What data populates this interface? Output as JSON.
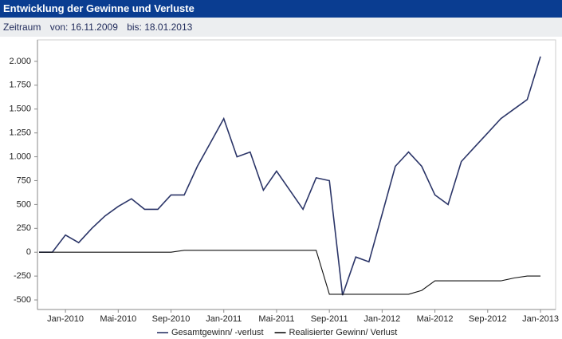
{
  "chart_data": {
    "type": "line",
    "title": "Entwicklung der Gewinne und Verluste",
    "period_label": "Zeitraum",
    "period_from": "von: 16.11.2009",
    "period_to": "bis: 18.01.2013",
    "categories": [
      null,
      null,
      "Jan-2010",
      null,
      null,
      null,
      "Mai-2010",
      null,
      null,
      null,
      "Sep-2010",
      null,
      null,
      null,
      "Jan-2011",
      null,
      null,
      null,
      "Mai-2011",
      null,
      null,
      null,
      "Sep-2011",
      null,
      null,
      null,
      "Jan-2012",
      null,
      null,
      null,
      "Mai-2012",
      null,
      null,
      null,
      "Sep-2012",
      null,
      null,
      null,
      "Jan-2013"
    ],
    "series": [
      {
        "name": "Gesamtgewinn/ -verlust",
        "color": "#2b3568",
        "values": [
          0,
          0,
          180,
          100,
          250,
          380,
          480,
          560,
          450,
          450,
          600,
          600,
          900,
          1150,
          1400,
          1000,
          1050,
          650,
          850,
          650,
          450,
          780,
          750,
          -450,
          -50,
          -100,
          400,
          900,
          1050,
          900,
          600,
          500,
          950,
          1100,
          1250,
          1400,
          1500,
          1600,
          2050
        ]
      },
      {
        "name": "Realisierter Gewinn/ Verlust",
        "color": "#111111",
        "values": [
          0,
          0,
          0,
          0,
          0,
          0,
          0,
          0,
          0,
          0,
          0,
          20,
          20,
          20,
          20,
          20,
          20,
          20,
          20,
          20,
          20,
          20,
          -440,
          -440,
          -440,
          -440,
          -440,
          -440,
          -440,
          -400,
          -300,
          -300,
          -300,
          -300,
          -300,
          -300,
          -270,
          -250,
          -250
        ]
      }
    ],
    "ylim": [
      -600,
      2225
    ],
    "yticks": [
      {
        "value": -500,
        "label": "-500"
      },
      -250,
      0,
      250,
      500,
      750,
      {
        "value": 1000,
        "label": "1.000"
      },
      {
        "value": 1250,
        "label": "1.250"
      },
      {
        "value": 1500,
        "label": "1.500"
      },
      {
        "value": 1750,
        "label": "1.750"
      },
      {
        "value": 2000,
        "label": "2.000"
      }
    ],
    "grid": false
  }
}
